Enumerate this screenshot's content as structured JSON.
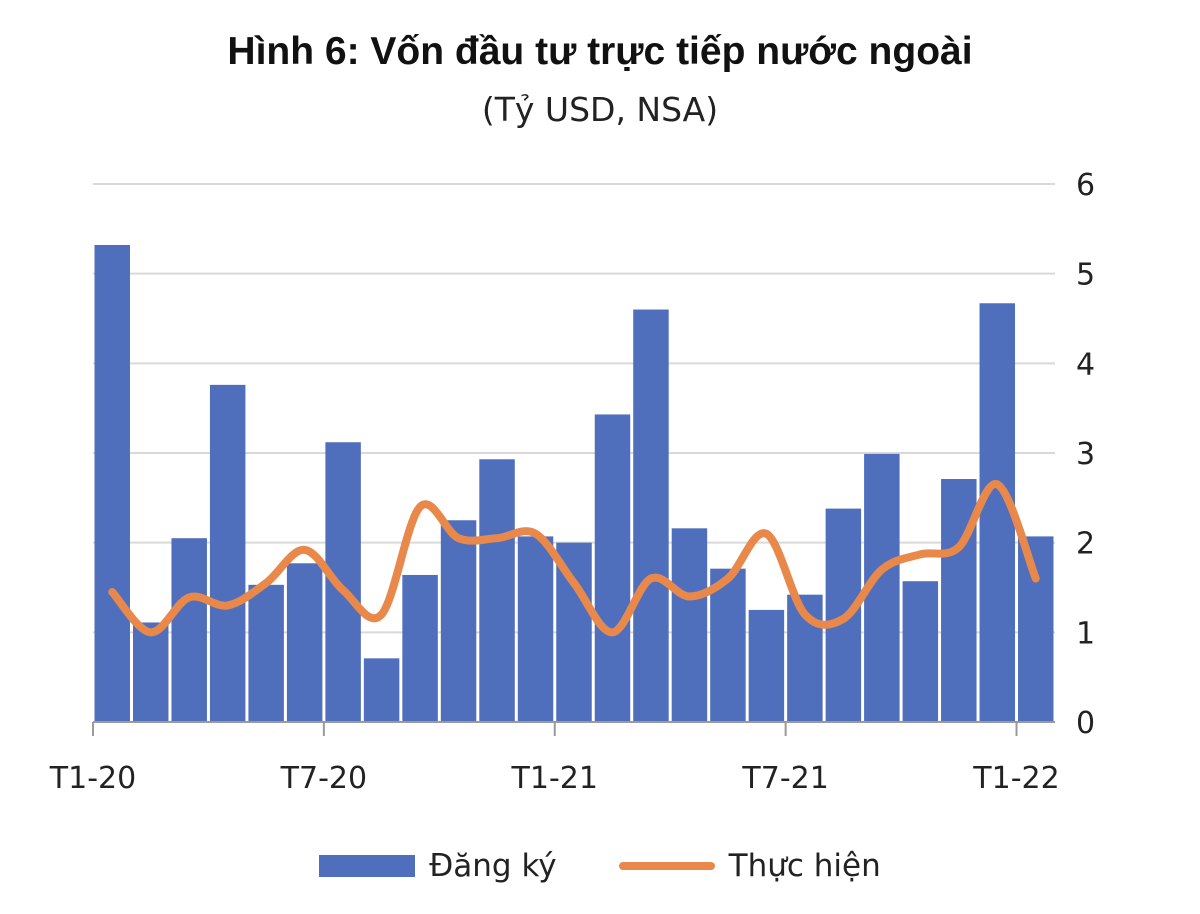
{
  "title": "Hình 6: Vốn đầu tư trực tiếp nước ngoài",
  "subtitle": "(Tỷ USD, NSA)",
  "chart_data": {
    "type": "bar",
    "title": "Hình 6: Vốn đầu tư trực tiếp nước ngoài",
    "subtitle": "(Tỷ USD, NSA)",
    "ylim": [
      0,
      6
    ],
    "y_ticks": [
      "0",
      "1",
      "2",
      "3",
      "4",
      "5",
      "6"
    ],
    "y_axis_side": "right",
    "x_tick_labels": [
      {
        "index": 0,
        "label": "T1-20"
      },
      {
        "index": 6,
        "label": "T7-20"
      },
      {
        "index": 12,
        "label": "T1-21"
      },
      {
        "index": 18,
        "label": "T7-21"
      },
      {
        "index": 24,
        "label": "T1-22"
      }
    ],
    "grid": true,
    "legend_position": "bottom",
    "series": [
      {
        "name": "Đăng ký",
        "type": "bar",
        "color": "#4f6fbd",
        "values": [
          5.32,
          1.11,
          2.05,
          3.76,
          1.53,
          1.77,
          3.12,
          0.71,
          1.64,
          2.25,
          2.93,
          2.07,
          2.0,
          3.43,
          4.6,
          2.16,
          1.71,
          1.25,
          1.42,
          2.38,
          2.99,
          1.57,
          2.71,
          4.67,
          2.07
        ]
      },
      {
        "name": "Thực hiện",
        "type": "line",
        "color": "#e8894b",
        "values": [
          1.45,
          1.0,
          1.39,
          1.3,
          1.55,
          1.92,
          1.47,
          1.2,
          2.4,
          2.05,
          2.05,
          2.1,
          1.55,
          1.0,
          1.6,
          1.4,
          1.6,
          2.1,
          1.2,
          1.15,
          1.7,
          1.87,
          1.95,
          2.65,
          1.6
        ]
      }
    ]
  },
  "legend": {
    "bar_label": "Đăng ký",
    "line_label": "Thực hiện"
  }
}
